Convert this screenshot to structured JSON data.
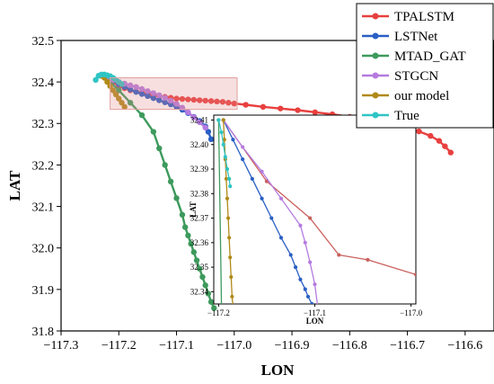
{
  "chart_data": [
    {
      "type": "line",
      "xlabel": "LON",
      "ylabel": "LAT",
      "xlim": [
        -117.3,
        -116.55
      ],
      "ylim": [
        31.8,
        32.5
      ],
      "xticks": [
        -117.3,
        -117.2,
        -117.1,
        -117.0,
        -116.9,
        -116.8,
        -116.7,
        -116.6
      ],
      "xtick_labels": [
        "−117.3",
        "−117.2",
        "−117.1",
        "−117.0",
        "−116.9",
        "−116.8",
        "−116.7",
        "−116.6"
      ],
      "yticks": [
        31.8,
        31.9,
        32.0,
        32.1,
        32.2,
        32.3,
        32.4,
        32.5
      ],
      "ytick_labels": [
        "31.8",
        "31.9",
        "32.0",
        "32.1",
        "32.2",
        "32.3",
        "32.4",
        "32.5"
      ],
      "legend_position": "top-right",
      "series": [
        {
          "name": "TPALSTM",
          "color": "#e8403f",
          "x": [
            -117.23,
            -117.22,
            -117.21,
            -117.2,
            -117.19,
            -117.18,
            -117.17,
            -117.16,
            -117.15,
            -117.14,
            -117.13,
            -117.12,
            -117.11,
            -117.1,
            -117.09,
            -117.08,
            -117.07,
            -117.06,
            -117.05,
            -117.04,
            -117.03,
            -117.02,
            -117.01,
            -117.0,
            -116.98,
            -116.95,
            -116.92,
            -116.89,
            -116.86,
            -116.83,
            -116.8,
            -116.78,
            -116.76,
            -116.74,
            -116.72,
            -116.7,
            -116.68,
            -116.66,
            -116.645,
            -116.635,
            -116.625
          ],
          "y": [
            32.415,
            32.41,
            32.4,
            32.39,
            32.385,
            32.38,
            32.377,
            32.374,
            32.371,
            32.368,
            32.366,
            32.364,
            32.362,
            32.36,
            32.359,
            32.358,
            32.357,
            32.356,
            32.355,
            32.354,
            32.353,
            32.352,
            32.35,
            32.348,
            32.345,
            32.34,
            32.336,
            32.332,
            32.327,
            32.322,
            32.316,
            32.312,
            32.308,
            32.303,
            32.297,
            32.29,
            32.281,
            32.27,
            32.258,
            32.245,
            32.23
          ]
        },
        {
          "name": "LSTNet",
          "color": "#2a5fc4",
          "x": [
            -117.23,
            -117.22,
            -117.21,
            -117.2,
            -117.19,
            -117.18,
            -117.17,
            -117.16,
            -117.15,
            -117.14,
            -117.13,
            -117.12,
            -117.11,
            -117.1,
            -117.09,
            -117.08,
            -117.07,
            -117.06,
            -117.05,
            -117.045,
            -117.04
          ],
          "y": [
            32.415,
            32.41,
            32.403,
            32.395,
            32.388,
            32.382,
            32.376,
            32.371,
            32.366,
            32.361,
            32.356,
            32.351,
            32.346,
            32.34,
            32.333,
            32.325,
            32.316,
            32.306,
            32.293,
            32.28,
            32.262
          ]
        },
        {
          "name": "MTAD_GAT",
          "color": "#3d9a5c",
          "x": [
            -117.23,
            -117.215,
            -117.2,
            -117.18,
            -117.16,
            -117.14,
            -117.13,
            -117.12,
            -117.11,
            -117.1,
            -117.09,
            -117.085,
            -117.08,
            -117.075,
            -117.07,
            -117.065,
            -117.06,
            -117.055,
            -117.05,
            -117.045,
            -117.04,
            -117.035
          ],
          "y": [
            32.415,
            32.4,
            32.38,
            32.35,
            32.32,
            32.28,
            32.24,
            32.2,
            32.16,
            32.12,
            32.08,
            32.05,
            32.03,
            32.01,
            31.99,
            31.97,
            31.95,
            31.93,
            31.91,
            31.89,
            31.87,
            31.855
          ]
        },
        {
          "name": "STGCN",
          "color": "#b57be0",
          "x": [
            -117.23,
            -117.22,
            -117.21,
            -117.2,
            -117.19,
            -117.18,
            -117.17,
            -117.16,
            -117.15,
            -117.14,
            -117.13,
            -117.12,
            -117.11,
            -117.1,
            -117.09,
            -117.08,
            -117.07,
            -117.06,
            -117.05
          ],
          "y": [
            32.415,
            32.41,
            32.405,
            32.4,
            32.396,
            32.392,
            32.388,
            32.383,
            32.378,
            32.373,
            32.368,
            32.362,
            32.355,
            32.347,
            32.338,
            32.327,
            32.315,
            32.303,
            32.29
          ]
        },
        {
          "name": "our model",
          "color": "#b08a18",
          "x": [
            -117.23,
            -117.225,
            -117.22,
            -117.215,
            -117.21,
            -117.205,
            -117.2,
            -117.195,
            -117.19
          ],
          "y": [
            32.415,
            32.41,
            32.4,
            32.39,
            32.38,
            32.37,
            32.36,
            32.35,
            32.34
          ]
        },
        {
          "name": "True",
          "color": "#2fc4c4",
          "x": [
            -117.24,
            -117.235,
            -117.23,
            -117.225,
            -117.22,
            -117.215,
            -117.21,
            -117.205,
            -117.2,
            -117.195
          ],
          "y": [
            32.405,
            32.415,
            32.418,
            32.418,
            32.416,
            32.414,
            32.41,
            32.405,
            32.4,
            32.395
          ]
        }
      ]
    },
    {
      "type": "line",
      "role": "inset",
      "xlabel": "LON",
      "ylabel": "LAT",
      "xlim": [
        -117.205,
        -116.995
      ],
      "ylim": [
        32.335,
        32.412
      ],
      "xticks": [
        -117.2,
        -117.1,
        -117.0
      ],
      "xtick_labels": [
        "−117.2",
        "−117.1",
        "−117.0"
      ],
      "yticks": [
        32.34,
        32.35,
        32.36,
        32.37,
        32.38,
        32.39,
        32.4,
        32.41
      ],
      "ytick_labels": [
        "32.34",
        "32.35",
        "32.36",
        "32.37",
        "32.38",
        "32.39",
        "32.40",
        "32.41"
      ],
      "series": [
        {
          "name": "TPALSTM",
          "color": "#c9605c",
          "x": [
            -117.195,
            -117.15,
            -117.105,
            -117.075,
            -117.045,
            -116.995
          ],
          "y": [
            32.41,
            32.385,
            32.37,
            32.355,
            32.353,
            32.347
          ]
        },
        {
          "name": "LSTNet",
          "color": "#2a5fc4",
          "x": [
            -117.195,
            -117.185,
            -117.175,
            -117.165,
            -117.155,
            -117.145,
            -117.135,
            -117.125,
            -117.12,
            -117.115,
            -117.11,
            -117.107,
            -117.103,
            -117.1
          ],
          "y": [
            32.41,
            32.402,
            32.394,
            32.386,
            32.378,
            32.37,
            32.362,
            32.355,
            32.35,
            32.345,
            32.341,
            32.338,
            32.335,
            32.332
          ]
        },
        {
          "name": "MTAD_GAT",
          "color": "#3d9a5c",
          "x": [
            -117.2,
            -117.197
          ],
          "y": [
            32.41,
            32.334
          ]
        },
        {
          "name": "STGCN",
          "color": "#b57be0",
          "x": [
            -117.195,
            -117.175,
            -117.155,
            -117.135,
            -117.115,
            -117.11,
            -117.105,
            -117.1,
            -117.097
          ],
          "y": [
            32.41,
            32.399,
            32.389,
            32.378,
            32.367,
            32.36,
            32.352,
            32.343,
            32.334
          ]
        },
        {
          "name": "our model",
          "color": "#b08a18",
          "x": [
            -117.195,
            -117.194,
            -117.193,
            -117.192,
            -117.191,
            -117.19,
            -117.189,
            -117.188,
            -117.187,
            -117.186,
            -117.185
          ],
          "y": [
            32.41,
            32.402,
            32.394,
            32.386,
            32.378,
            32.37,
            32.362,
            32.354,
            32.346,
            32.338,
            32.334
          ]
        },
        {
          "name": "True",
          "color": "#2fc4c4",
          "x": [
            -117.2,
            -117.197,
            -117.195,
            -117.193,
            -117.191,
            -117.189,
            -117.188
          ],
          "y": [
            32.41,
            32.405,
            32.4,
            32.395,
            32.39,
            32.386,
            32.383
          ]
        }
      ]
    }
  ]
}
